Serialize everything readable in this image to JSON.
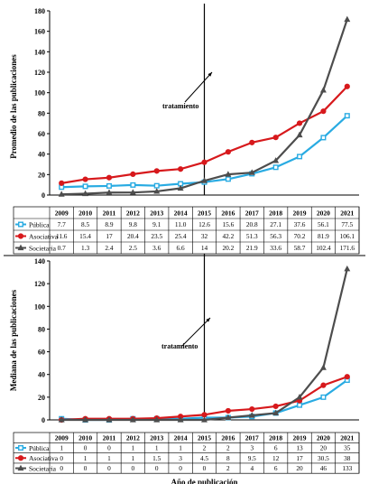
{
  "chart_data": [
    {
      "type": "line",
      "ylabel": "Promedio de las publicaciones",
      "xlabel": "",
      "ylim": [
        0,
        180
      ],
      "yticks": [
        0,
        20,
        40,
        60,
        80,
        100,
        120,
        140,
        160,
        180
      ],
      "categories": [
        "2009",
        "2010",
        "2011",
        "2012",
        "2013",
        "2014",
        "2015",
        "2016",
        "2017",
        "2018",
        "2019",
        "2020",
        "2021"
      ],
      "series": [
        {
          "name": "Pública",
          "color": "#29abe2",
          "marker": "square",
          "labels": [
            "7.7",
            "8.5",
            "8.9",
            "9.8",
            "9.1",
            "11.0",
            "12.6",
            "15.6",
            "20.8",
            "27.1",
            "37.6",
            "56.1",
            "77.5"
          ],
          "values": [
            7.7,
            8.5,
            8.9,
            9.8,
            9.1,
            11.0,
            12.6,
            15.6,
            20.8,
            27.1,
            37.6,
            56.1,
            77.5
          ]
        },
        {
          "name": "Asociativa",
          "color": "#d7191c",
          "marker": "circle",
          "labels": [
            "11.6",
            "15.4",
            "17",
            "20.4",
            "23.5",
            "25.4",
            "32",
            "42.2",
            "51.3",
            "56.3",
            "70.2",
            "81.9",
            "106.1"
          ],
          "values": [
            11.6,
            15.4,
            17,
            20.4,
            23.5,
            25.4,
            32,
            42.2,
            51.3,
            56.3,
            70.2,
            81.9,
            106.1
          ]
        },
        {
          "name": "Societaria",
          "color": "#4d4d4d",
          "marker": "triangle",
          "labels": [
            "0.7",
            "1.3",
            "2.4",
            "2.5",
            "3.6",
            "6.6",
            "14",
            "20.2",
            "21.9",
            "33.6",
            "58.7",
            "102.4",
            "171.6"
          ],
          "values": [
            0.7,
            1.3,
            2.4,
            2.5,
            3.6,
            6.6,
            14,
            20.2,
            21.9,
            33.6,
            58.7,
            102.4,
            171.6
          ]
        }
      ],
      "annotation": {
        "text": "tratamiento",
        "year": "2015"
      }
    },
    {
      "type": "line",
      "ylabel": "Mediana de las publicaciones",
      "xlabel": "Año de publicación",
      "ylim": [
        0,
        140
      ],
      "yticks": [
        0,
        20,
        40,
        60,
        80,
        100,
        120,
        140
      ],
      "categories": [
        "2009",
        "2010",
        "2011",
        "2012",
        "2013",
        "2014",
        "2015",
        "2016",
        "2017",
        "2018",
        "2019",
        "2020",
        "2021"
      ],
      "series": [
        {
          "name": "Pública",
          "color": "#29abe2",
          "marker": "square",
          "labels": [
            "1",
            "0",
            "0",
            "1",
            "1",
            "1",
            "2",
            "2",
            "3",
            "6",
            "13",
            "20",
            "35"
          ],
          "values": [
            1,
            0,
            0,
            1,
            1,
            1,
            2,
            2,
            3,
            6,
            13,
            20,
            35
          ]
        },
        {
          "name": "Asociativa",
          "color": "#d7191c",
          "marker": "circle",
          "labels": [
            "0",
            "1",
            "1",
            "1",
            "1.5",
            "3",
            "4.5",
            "8",
            "9.5",
            "12",
            "17",
            "30.5",
            "38"
          ],
          "values": [
            0,
            1,
            1,
            1,
            1.5,
            3,
            4.5,
            8,
            9.5,
            12,
            17,
            30.5,
            38
          ]
        },
        {
          "name": "Societaria",
          "color": "#4d4d4d",
          "marker": "triangle",
          "labels": [
            "0",
            "0",
            "0",
            "0",
            "0",
            "0",
            "0",
            "2",
            "4",
            "6",
            "20",
            "46",
            "133"
          ],
          "values": [
            0,
            0,
            0,
            0,
            0,
            0,
            0,
            2,
            4,
            6,
            20,
            46,
            133
          ]
        }
      ],
      "annotation": {
        "text": "tratamiento",
        "year": "2015"
      }
    }
  ]
}
